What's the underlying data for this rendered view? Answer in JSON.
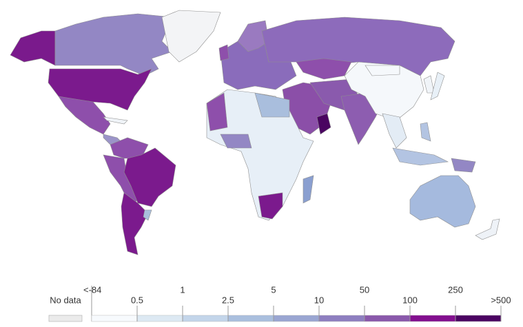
{
  "legend": {
    "no_data": "No data",
    "no_data_color": "#ebebeb",
    "ticks": [
      "<-84",
      "0.5",
      "1",
      "2.5",
      "5",
      "10",
      "50",
      "100",
      "250",
      ">500"
    ],
    "colors": [
      "#f7fafd",
      "#dde9f3",
      "#c3d5ea",
      "#aabfde",
      "#9aa6d2",
      "#8e7fc0",
      "#8a58ab",
      "#830f8f",
      "#4b0462"
    ]
  }
}
